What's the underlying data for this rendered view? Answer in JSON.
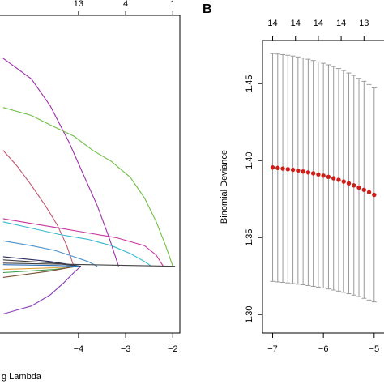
{
  "chart_data": [
    {
      "type": "line",
      "panel_label": "",
      "xlabel": "g Lambda",
      "xlim": [
        -5.7,
        -1.85
      ],
      "ylim": [
        -1.0,
        1.0
      ],
      "x_ticks": [
        -4,
        -3,
        -2
      ],
      "x_tick_labels": [
        "−4",
        "−3",
        "−2"
      ],
      "top_ticks": [
        {
          "x": -4,
          "label": "13"
        },
        {
          "x": -3,
          "label": "4"
        },
        {
          "x": -2,
          "label": "1"
        }
      ],
      "series": [
        {
          "color": "#9b30a8",
          "points": [
            [
              -5.6,
              0.73
            ],
            [
              -5.0,
              0.6
            ],
            [
              -4.6,
              0.43
            ],
            [
              -4.2,
              0.2
            ],
            [
              -3.9,
              0.0
            ],
            [
              -3.6,
              -0.2
            ],
            [
              -3.35,
              -0.4
            ],
            [
              -3.15,
              -0.58
            ]
          ]
        },
        {
          "color": "#6fbf46",
          "points": [
            [
              -5.6,
              0.42
            ],
            [
              -5.0,
              0.37
            ],
            [
              -4.6,
              0.31
            ],
            [
              -4.1,
              0.24
            ],
            [
              -3.7,
              0.15
            ],
            [
              -3.3,
              0.08
            ],
            [
              -2.9,
              -0.02
            ],
            [
              -2.6,
              -0.15
            ],
            [
              -2.35,
              -0.3
            ],
            [
              -2.15,
              -0.45
            ],
            [
              -2.0,
              -0.58
            ]
          ]
        },
        {
          "color": "#c0566d",
          "points": [
            [
              -5.6,
              0.15
            ],
            [
              -5.3,
              0.05
            ],
            [
              -5.0,
              -0.07
            ],
            [
              -4.7,
              -0.2
            ],
            [
              -4.45,
              -0.32
            ],
            [
              -4.25,
              -0.45
            ],
            [
              -4.1,
              -0.58
            ]
          ]
        },
        {
          "color": "#c8359e",
          "points": [
            [
              -5.6,
              -0.28
            ],
            [
              -5.0,
              -0.31
            ],
            [
              -4.4,
              -0.34
            ],
            [
              -3.8,
              -0.37
            ],
            [
              -3.2,
              -0.4
            ],
            [
              -2.6,
              -0.45
            ],
            [
              -2.35,
              -0.51
            ],
            [
              -2.2,
              -0.58
            ]
          ]
        },
        {
          "color": "#37b8cf",
          "points": [
            [
              -5.6,
              -0.3
            ],
            [
              -5.0,
              -0.34
            ],
            [
              -4.4,
              -0.38
            ],
            [
              -3.8,
              -0.41
            ],
            [
              -3.3,
              -0.45
            ],
            [
              -2.9,
              -0.5
            ],
            [
              -2.6,
              -0.55
            ],
            [
              -2.45,
              -0.58
            ]
          ]
        },
        {
          "color": "#4a90c8",
          "points": [
            [
              -5.6,
              -0.42
            ],
            [
              -5.0,
              -0.45
            ],
            [
              -4.5,
              -0.48
            ],
            [
              -4.1,
              -0.52
            ],
            [
              -3.8,
              -0.55
            ],
            [
              -3.6,
              -0.58
            ]
          ]
        },
        {
          "color": "#8a3fb8",
          "points": [
            [
              -5.6,
              -0.88
            ],
            [
              -5.0,
              -0.83
            ],
            [
              -4.6,
              -0.76
            ],
            [
              -4.3,
              -0.68
            ],
            [
              -4.1,
              -0.62
            ],
            [
              -3.95,
              -0.58
            ]
          ]
        },
        {
          "color": "#2a2a5e",
          "points": [
            [
              -5.6,
              -0.52
            ],
            [
              -4.6,
              -0.55
            ],
            [
              -3.95,
              -0.58
            ]
          ]
        },
        {
          "color": "#3f3f3f",
          "points": [
            [
              -5.6,
              -0.54
            ],
            [
              -4.5,
              -0.56
            ],
            [
              -4.0,
              -0.58
            ]
          ]
        },
        {
          "color": "#3a9c4a",
          "points": [
            [
              -5.6,
              -0.62
            ],
            [
              -4.5,
              -0.6
            ],
            [
              -4.0,
              -0.58
            ]
          ]
        },
        {
          "color": "#e0a23a",
          "points": [
            [
              -5.6,
              -0.6
            ],
            [
              -4.5,
              -0.59
            ],
            [
              -4.05,
              -0.58
            ]
          ]
        },
        {
          "color": "#7a5230",
          "points": [
            [
              -5.6,
              -0.65
            ],
            [
              -4.6,
              -0.61
            ],
            [
              -4.05,
              -0.58
            ]
          ]
        },
        {
          "color": "#2e6fb5",
          "points": [
            [
              -5.6,
              -0.57
            ],
            [
              -4.5,
              -0.575
            ],
            [
              -4.0,
              -0.58
            ]
          ]
        },
        {
          "color": "#444444",
          "points": [
            [
              -5.6,
              -0.56
            ],
            [
              -1.95,
              -0.58
            ]
          ]
        }
      ]
    },
    {
      "type": "scatter",
      "panel_label": "B",
      "ylabel": "Binomial Deviance",
      "xlim": [
        -7.2,
        -4.55
      ],
      "ylim": [
        1.288,
        1.478
      ],
      "x_ticks": [
        -7,
        -6,
        -5
      ],
      "x_tick_labels": [
        "−7",
        "−6",
        "−5"
      ],
      "y_ticks": [
        1.3,
        1.35,
        1.4,
        1.45
      ],
      "y_tick_labels": [
        "1.30",
        "1.35",
        "1.40",
        "1.45"
      ],
      "top_ticks": [
        {
          "x": -7.0,
          "label": "14"
        },
        {
          "x": -6.55,
          "label": "14"
        },
        {
          "x": -6.1,
          "label": "14"
        },
        {
          "x": -5.65,
          "label": "14"
        },
        {
          "x": -5.2,
          "label": "13"
        }
      ],
      "point_color": "#cc1f1a",
      "errorbar_color": "#9a9a9a",
      "points": [
        {
          "x": -7.0,
          "y": 1.3955,
          "lo": 1.3215,
          "hi": 1.4695
        },
        {
          "x": -6.9,
          "y": 1.3952,
          "lo": 1.3212,
          "hi": 1.4692
        },
        {
          "x": -6.8,
          "y": 1.3948,
          "lo": 1.3209,
          "hi": 1.4688
        },
        {
          "x": -6.7,
          "y": 1.3944,
          "lo": 1.3205,
          "hi": 1.4684
        },
        {
          "x": -6.6,
          "y": 1.394,
          "lo": 1.3201,
          "hi": 1.4679
        },
        {
          "x": -6.5,
          "y": 1.3935,
          "lo": 1.3197,
          "hi": 1.4673
        },
        {
          "x": -6.4,
          "y": 1.3929,
          "lo": 1.3193,
          "hi": 1.4666
        },
        {
          "x": -6.3,
          "y": 1.3923,
          "lo": 1.3188,
          "hi": 1.4658
        },
        {
          "x": -6.2,
          "y": 1.3917,
          "lo": 1.3183,
          "hi": 1.465
        },
        {
          "x": -6.1,
          "y": 1.391,
          "lo": 1.3178,
          "hi": 1.4641
        },
        {
          "x": -6.0,
          "y": 1.3902,
          "lo": 1.3172,
          "hi": 1.4632
        },
        {
          "x": -5.9,
          "y": 1.3894,
          "lo": 1.3166,
          "hi": 1.4622
        },
        {
          "x": -5.8,
          "y": 1.3885,
          "lo": 1.3159,
          "hi": 1.4611
        },
        {
          "x": -5.7,
          "y": 1.3875,
          "lo": 1.3152,
          "hi": 1.4598
        },
        {
          "x": -5.6,
          "y": 1.3864,
          "lo": 1.3144,
          "hi": 1.4585
        },
        {
          "x": -5.5,
          "y": 1.3852,
          "lo": 1.3135,
          "hi": 1.4569
        },
        {
          "x": -5.4,
          "y": 1.3839,
          "lo": 1.3126,
          "hi": 1.4553
        },
        {
          "x": -5.3,
          "y": 1.3825,
          "lo": 1.3116,
          "hi": 1.4534
        },
        {
          "x": -5.2,
          "y": 1.381,
          "lo": 1.3105,
          "hi": 1.4515
        },
        {
          "x": -5.1,
          "y": 1.3794,
          "lo": 1.3094,
          "hi": 1.4494
        },
        {
          "x": -5.0,
          "y": 1.3777,
          "lo": 1.3082,
          "hi": 1.4472
        }
      ]
    }
  ]
}
